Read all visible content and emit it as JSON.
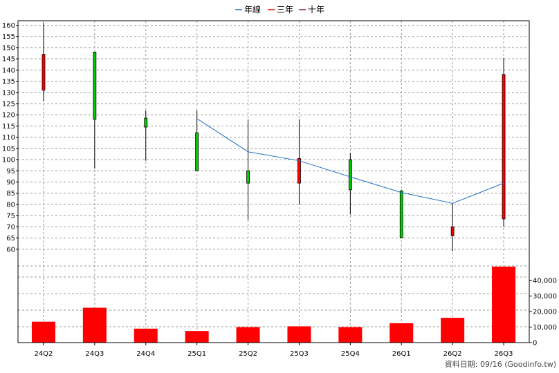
{
  "legend": [
    {
      "label": "年線",
      "color": "#1e6fc8"
    },
    {
      "label": "三年",
      "color": "#ff0000"
    },
    {
      "label": "十年",
      "color": "#8b1a1a"
    }
  ],
  "footer_text": "資料日期: 09/16  (Goodinfo.tw)",
  "chart_data": {
    "type": "candlestick",
    "categories": [
      "24Q2",
      "24Q3",
      "24Q4",
      "25Q1",
      "25Q2",
      "25Q3",
      "25Q4",
      "26Q1",
      "26Q2",
      "26Q3"
    ],
    "price_ylim": [
      55,
      162
    ],
    "price_ticks": [
      60,
      65,
      70,
      75,
      80,
      85,
      90,
      95,
      100,
      105,
      110,
      115,
      120,
      125,
      130,
      135,
      140,
      145,
      150,
      155,
      160
    ],
    "candles": [
      {
        "open": 131,
        "close": 147,
        "high": 161,
        "low": 126,
        "up": true
      },
      {
        "open": 148,
        "close": 118,
        "high": 148,
        "low": 96,
        "up": false
      },
      {
        "open": 118.5,
        "close": 114.5,
        "high": 122,
        "low": 99.5,
        "up": false
      },
      {
        "open": 112,
        "close": 95,
        "high": 122,
        "low": 95,
        "up": false
      },
      {
        "open": 95,
        "close": 89.5,
        "high": 118,
        "low": 73,
        "up": false
      },
      {
        "open": 89.5,
        "close": 100.5,
        "high": 118,
        "low": 80,
        "up": true
      },
      {
        "open": 100,
        "close": 86.5,
        "high": 103,
        "low": 75.5,
        "up": false
      },
      {
        "open": 86,
        "close": 65,
        "high": 86.5,
        "low": 65,
        "up": false
      },
      {
        "open": 66,
        "close": 70,
        "high": 80.5,
        "low": 59,
        "up": true
      },
      {
        "open": 73.5,
        "close": 138,
        "high": 145.5,
        "low": 70,
        "up": true
      }
    ],
    "series": [
      {
        "name": "年線",
        "color": "#1e6fc8",
        "values": [
          null,
          null,
          null,
          118.3,
          103.5,
          99.5,
          92.3,
          85.3,
          80.5,
          89.5
        ]
      }
    ],
    "volume": [
      13500,
      22500,
      9000,
      7500,
      10000,
      10500,
      10000,
      12500,
      16000,
      49000
    ],
    "volume_ylim": [
      0,
      53000
    ],
    "volume_ticks": [
      "0",
      "10,000",
      "20,000",
      "30,000",
      "40,000"
    ],
    "volume_tick_values": [
      0,
      10000,
      20000,
      30000,
      40000
    ]
  }
}
